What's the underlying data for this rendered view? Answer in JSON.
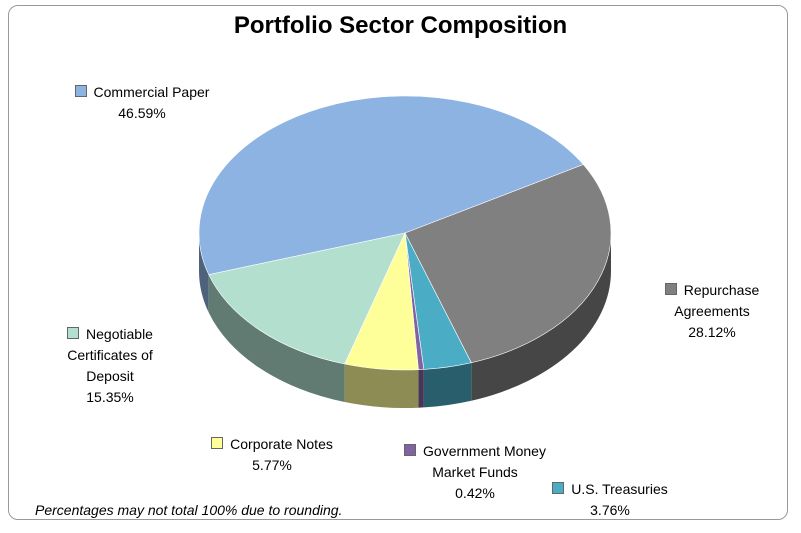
{
  "chart_data": {
    "type": "pie",
    "title": "Portfolio Sector Composition",
    "categories": [
      "Commercial Paper",
      "Repurchase Agreements",
      "U.S. Treasuries",
      "Government Money Market Funds",
      "Corporate Notes",
      "Negotiable Certificates of Deposit"
    ],
    "values": [
      46.59,
      28.12,
      3.76,
      0.42,
      5.77,
      15.35
    ],
    "value_labels": [
      "46.59%",
      "28.12%",
      "3.76%",
      "0.42%",
      "5.77%",
      "15.35%"
    ],
    "colors": [
      "#8db3e2",
      "#808080",
      "#4bacc6",
      "#8064a2",
      "#ffff99",
      "#b3dfcf"
    ],
    "note": "Percentages may not total 100% due to rounding."
  }
}
